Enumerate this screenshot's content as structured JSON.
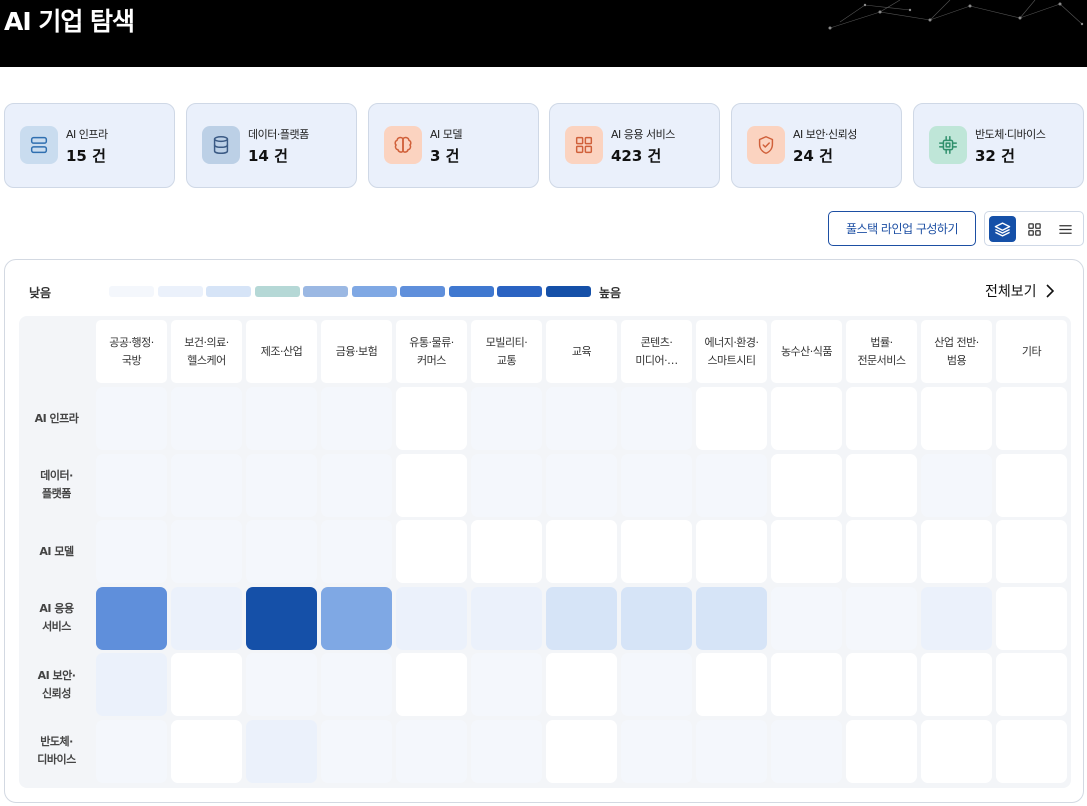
{
  "header": {
    "title": "AI 기업 탐색"
  },
  "categories": [
    {
      "label": "AI 인프라",
      "count": "15 건",
      "icon": "server-stack-icon",
      "icon_bg": "#c9dcef",
      "icon_color": "#2f6fb0"
    },
    {
      "label": "데이터·플랫폼",
      "count": "14 건",
      "icon": "database-icon",
      "icon_bg": "#bcd0e6",
      "icon_color": "#3b5a84"
    },
    {
      "label": "AI 모델",
      "count": "3 건",
      "icon": "brain-icon",
      "icon_bg": "#fbd3c0",
      "icon_color": "#d0603a"
    },
    {
      "label": "AI 응용 서비스",
      "count": "423 건",
      "icon": "app-grid-icon",
      "icon_bg": "#fbd3c0",
      "icon_color": "#d0603a"
    },
    {
      "label": "AI 보안·신뢰성",
      "count": "24 건",
      "icon": "shield-check-icon",
      "icon_bg": "#fbd3c0",
      "icon_color": "#d0603a"
    },
    {
      "label": "반도체·디바이스",
      "count": "32 건",
      "icon": "chip-icon",
      "icon_bg": "#bfe6d8",
      "icon_color": "#2f8f6b"
    }
  ],
  "toolbar": {
    "stack_button_label": "풀스택 라인업 구성하기",
    "views": [
      {
        "name": "layers-view",
        "icon": "layers-icon",
        "active": true
      },
      {
        "name": "grid-view",
        "icon": "grid-icon",
        "active": false
      },
      {
        "name": "list-view",
        "icon": "list-icon",
        "active": false
      }
    ]
  },
  "legend": {
    "low_label": "낮음",
    "high_label": "높음",
    "colors": [
      "#f4f7fc",
      "#ebf1fb",
      "#d6e4f7",
      "#b5d8d6",
      "#9bb8e3",
      "#7fa8e4",
      "#5f8fdb",
      "#3f78d0",
      "#2a63c2",
      "#1550a8"
    ]
  },
  "view_all_label": "전체보기",
  "matrix": {
    "columns": [
      "공공·행정·\n국방",
      "보건·의료·\n헬스케어",
      "제조·산업",
      "금융·보험",
      "유통·물류·\n커머스",
      "모빌리티·\n교통",
      "교육",
      "콘텐츠·\n미디어·…",
      "에너지·환경·\n스마트시티",
      "농수산·식품",
      "법률·\n전문서비스",
      "산업 전반·\n범용",
      "기타"
    ],
    "rows": [
      "AI 인프라",
      "데이터·\n플랫폼",
      "AI 모델",
      "AI 응용\n서비스",
      "AI 보안·\n신뢰성",
      "반도체·\n디바이스"
    ],
    "levels": [
      [
        1,
        1,
        1,
        1,
        0,
        1,
        1,
        1,
        0,
        0,
        0,
        0,
        0
      ],
      [
        1,
        1,
        1,
        1,
        0,
        1,
        1,
        1,
        1,
        0,
        0,
        1,
        0
      ],
      [
        1,
        1,
        1,
        1,
        0,
        0,
        0,
        0,
        0,
        0,
        0,
        0,
        0
      ],
      [
        7,
        2,
        10,
        6,
        2,
        2,
        3,
        3,
        3,
        1,
        1,
        2,
        0
      ],
      [
        2,
        0,
        1,
        1,
        0,
        1,
        0,
        1,
        0,
        0,
        0,
        0,
        0
      ],
      [
        1,
        0,
        2,
        1,
        1,
        1,
        0,
        1,
        1,
        1,
        0,
        0,
        0
      ]
    ]
  }
}
